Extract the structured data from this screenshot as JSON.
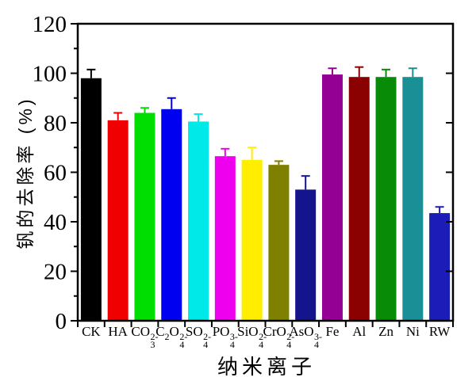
{
  "chart_data": {
    "type": "bar",
    "title": "",
    "xlabel": "纳米离子",
    "ylabel": "钒的去除率 (%)",
    "ylim": [
      0,
      120
    ],
    "yticks_major": [
      0,
      20,
      40,
      60,
      80,
      100,
      120
    ],
    "yticks_minor": [
      10,
      30,
      50,
      70,
      90,
      110
    ],
    "grid": false,
    "legend": null,
    "categories": [
      "CK",
      "HA",
      "CO_3^2-",
      "C_2O_4^2-",
      "SO_4^2-",
      "PO_4^3-",
      "SiO_4^2-",
      "CrO_4^2-",
      "AsO_4^3-",
      "Fe",
      "Al",
      "Zn",
      "Ni",
      "RW"
    ],
    "values": [
      98,
      81,
      84,
      85.5,
      80.5,
      66.5,
      65,
      63,
      53,
      99.5,
      98.5,
      98.5,
      98.5,
      43.5
    ],
    "errors": [
      3.5,
      3,
      2,
      4.5,
      3,
      3,
      5,
      1.5,
      5.5,
      2.5,
      4,
      3,
      3.5,
      2.5
    ],
    "bar_colors": [
      "#000000",
      "#f00000",
      "#00dd00",
      "#0000f0",
      "#00e9e9",
      "#ee00ee",
      "#ffee00",
      "#7f7f00",
      "#14148c",
      "#940094",
      "#8b0000",
      "#088c08",
      "#1b8f96",
      "#1c1cb8"
    ],
    "axis_color": "#000000",
    "background_color": "#ffffff"
  }
}
